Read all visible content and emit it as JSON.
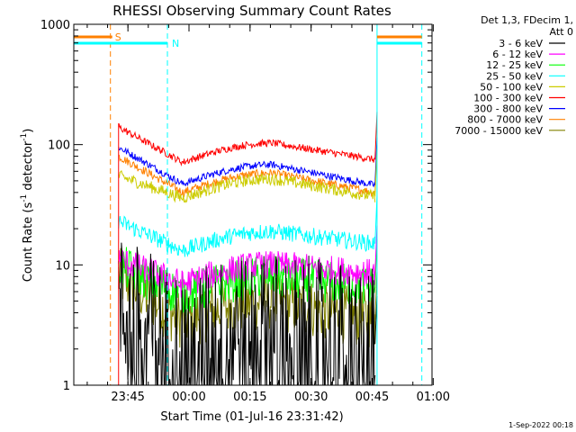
{
  "chart_data": {
    "type": "line",
    "title": "RHESSI Observing Summary Count Rates",
    "xlabel": "Start Time (01-Jul-16 23:31:42)",
    "ylabel": "Count Rate (s⁻¹ detector⁻¹)",
    "ylabel_main": "Count Rate (s",
    "ylabel_exp1": "-1",
    "ylabel_mid": " detector",
    "ylabel_exp2": "-1",
    "ylabel_end": ")",
    "y_scale": "log",
    "ylim": [
      1,
      1000
    ],
    "y_ticks": [
      {
        "value": 1,
        "label": "1"
      },
      {
        "value": 10,
        "label": "10"
      },
      {
        "value": 100,
        "label": "100"
      },
      {
        "value": 1000,
        "label": "1000"
      }
    ],
    "x_unit": "minutes after 23:31:42",
    "xlim": [
      0,
      88
    ],
    "x_ticks": [
      {
        "value": 13.3,
        "label": "23:45"
      },
      {
        "value": 28.3,
        "label": "00:00"
      },
      {
        "value": 43.3,
        "label": "00:15"
      },
      {
        "value": 58.3,
        "label": "00:30"
      },
      {
        "value": 73.3,
        "label": "00:45"
      },
      {
        "value": 88.3,
        "label": "01:00"
      }
    ],
    "legend": {
      "placement": "right",
      "header_line1": "Det 1,3, FDecim 1,",
      "header_line2": "Att 0"
    },
    "series": [
      {
        "name": "3 - 6 keV",
        "color": "#000000",
        "values": {
          "start": 4.2,
          "bump": 3.0,
          "end": 2.2
        },
        "noise": 0.65,
        "baseline_floor": 1
      },
      {
        "name": "6 - 12 keV",
        "color": "#ff00ff",
        "values": {
          "start": 11,
          "bump": 10,
          "end": 8.5
        },
        "noise": 0.12
      },
      {
        "name": "12 - 25 keV",
        "color": "#00ff00",
        "values": {
          "start": 10,
          "bump": 8.0,
          "end": 6.5
        },
        "noise": 0.18
      },
      {
        "name": "25 - 50 keV",
        "color": "#00ffff",
        "values": {
          "start": 23,
          "bump": 19,
          "end": 15
        },
        "noise": 0.07
      },
      {
        "name": "50 - 100 keV",
        "color": "#cccc00",
        "values": {
          "start": 55,
          "bump": 52,
          "end": 37
        },
        "noise": 0.05
      },
      {
        "name": "100 - 300 keV",
        "color": "#ff0000",
        "values": {
          "start": 140,
          "bump": 103,
          "end": 75
        },
        "noise": 0.03
      },
      {
        "name": "300 - 800 keV",
        "color": "#0000ff",
        "values": {
          "start": 95,
          "bump": 68,
          "end": 46
        },
        "noise": 0.03
      },
      {
        "name": "800 - 7000 keV",
        "color": "#ff8000",
        "values": {
          "start": 80,
          "bump": 58,
          "end": 40
        },
        "noise": 0.035
      },
      {
        "name": "7000 - 15000 keV",
        "color": "#808000",
        "values": {
          "start": 8,
          "bump": 5,
          "end": 3.5
        },
        "noise": 0.25
      }
    ],
    "series_x_range": [
      11.0,
      74.0
    ],
    "annotations": {
      "saa_label": "S",
      "night_label": "N",
      "saa_start": 9.0,
      "saa_end": 11.0,
      "night_start": 23.0,
      "night_end": 74.5,
      "saa2_start": 74.5,
      "saa2_end": 85.5,
      "saa_color": "#ff8000",
      "night_color": "#00ffff",
      "flare_line_color": "#ff0000",
      "flare_line_x": 11.0
    }
  },
  "footer": {
    "timestamp": "1-Sep-2022 00:18"
  }
}
